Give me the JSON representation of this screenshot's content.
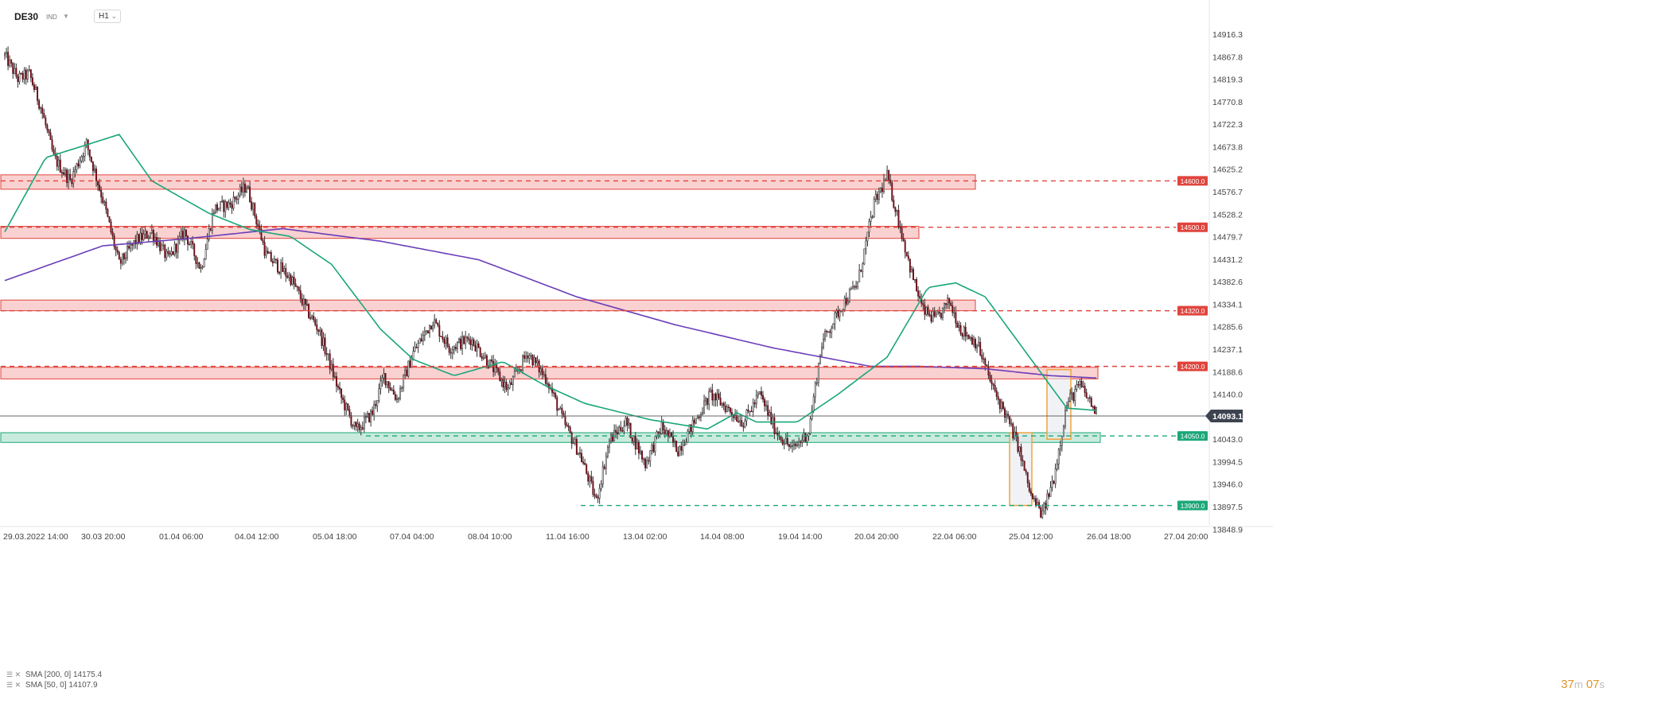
{
  "header": {
    "symbol": "DE30",
    "unit": "IND",
    "timeframe": "H1"
  },
  "legend": [
    {
      "label": "SMA [200, 0] 14175.4",
      "color": "#6a3db8"
    },
    {
      "label": "SMA [50, 0] 14107.9",
      "color": "#19a67a"
    }
  ],
  "countdown": {
    "minutes": "37",
    "m": "m",
    "seconds": "07",
    "s": "s"
  },
  "colors": {
    "up": "#ffffff",
    "down": "#6b0f1a",
    "wick": "#333333",
    "resistance_fill": "#f9c9c9",
    "resistance_stroke": "#e0443d",
    "support_fill": "#bfe8d8",
    "support_stroke": "#1ba779",
    "sma200": "#6a3db8",
    "sma50": "#19a67a",
    "price_line": "#666666",
    "highlight_box": "#f0a43a"
  },
  "chart_data": {
    "type": "candlestick",
    "ylim": [
      13840,
      14955
    ],
    "y_ticks": [
      14916.3,
      14867.8,
      14819.3,
      14770.8,
      14722.3,
      14673.8,
      14625.2,
      14576.7,
      14528.2,
      14479.7,
      14431.2,
      14382.6,
      14334.1,
      14285.6,
      14237.1,
      14188.6,
      14140.0,
      14091.5,
      14043.0,
      13994.5,
      13946.0,
      13897.5,
      13848.9
    ],
    "x_ticks": [
      "29.03.2022   14:00",
      "30.03 20:00",
      "01.04 06:00",
      "04.04 12:00",
      "05.04 18:00",
      "07.04 04:00",
      "08.04 10:00",
      "11.04 16:00",
      "13.04 02:00",
      "14.04 08:00",
      "19.04 14:00",
      "20.04 20:00",
      "22.04 06:00",
      "25.04 12:00",
      "26.04 18:00",
      "27.04 20:00"
    ],
    "current_price": 14093.1,
    "levels": [
      {
        "label": "14600.0",
        "value": 14600.0,
        "kind": "resistance"
      },
      {
        "label": "14500.0",
        "value": 14500.0,
        "kind": "resistance"
      },
      {
        "label": "14320.0",
        "value": 14320.0,
        "kind": "resistance"
      },
      {
        "label": "14200.0",
        "value": 14200.0,
        "kind": "resistance"
      },
      {
        "label": "14050.0",
        "value": 14050.0,
        "kind": "support"
      },
      {
        "label": "13900.0",
        "value": 13900.0,
        "kind": "support"
      }
    ],
    "zones": [
      {
        "low": 14582,
        "high": 14613,
        "kind": "resistance"
      },
      {
        "low": 14476,
        "high": 14502,
        "kind": "resistance"
      },
      {
        "low": 14320,
        "high": 14343,
        "kind": "resistance"
      },
      {
        "low": 14173,
        "high": 14198,
        "kind": "resistance"
      },
      {
        "low": 14036,
        "high": 14057,
        "kind": "support"
      }
    ],
    "candle_waypoints": [
      [
        0,
        14870
      ],
      [
        8,
        14820
      ],
      [
        15,
        14830
      ],
      [
        22,
        14760
      ],
      [
        30,
        14650
      ],
      [
        40,
        14600
      ],
      [
        50,
        14680
      ],
      [
        60,
        14560
      ],
      [
        70,
        14420
      ],
      [
        80,
        14470
      ],
      [
        90,
        14490
      ],
      [
        100,
        14430
      ],
      [
        110,
        14490
      ],
      [
        120,
        14410
      ],
      [
        128,
        14540
      ],
      [
        138,
        14550
      ],
      [
        148,
        14590
      ],
      [
        160,
        14440
      ],
      [
        175,
        14390
      ],
      [
        185,
        14320
      ],
      [
        192,
        14280
      ],
      [
        205,
        14140
      ],
      [
        215,
        14060
      ],
      [
        225,
        14100
      ],
      [
        232,
        14180
      ],
      [
        240,
        14130
      ],
      [
        250,
        14230
      ],
      [
        262,
        14300
      ],
      [
        272,
        14240
      ],
      [
        285,
        14260
      ],
      [
        298,
        14200
      ],
      [
        308,
        14150
      ],
      [
        320,
        14230
      ],
      [
        332,
        14170
      ],
      [
        342,
        14080
      ],
      [
        352,
        14010
      ],
      [
        362,
        13910
      ],
      [
        370,
        14040
      ],
      [
        380,
        14080
      ],
      [
        392,
        13990
      ],
      [
        402,
        14070
      ],
      [
        412,
        14020
      ],
      [
        422,
        14080
      ],
      [
        432,
        14140
      ],
      [
        442,
        14110
      ],
      [
        452,
        14080
      ],
      [
        462,
        14140
      ],
      [
        472,
        14060
      ],
      [
        482,
        14020
      ],
      [
        492,
        14060
      ],
      [
        500,
        14250
      ],
      [
        512,
        14330
      ],
      [
        522,
        14380
      ],
      [
        532,
        14550
      ],
      [
        540,
        14610
      ],
      [
        548,
        14500
      ],
      [
        555,
        14400
      ],
      [
        562,
        14320
      ],
      [
        570,
        14300
      ],
      [
        578,
        14340
      ],
      [
        585,
        14280
      ],
      [
        595,
        14250
      ],
      [
        605,
        14150
      ],
      [
        612,
        14100
      ],
      [
        620,
        14030
      ],
      [
        628,
        13920
      ],
      [
        635,
        13880
      ],
      [
        642,
        13960
      ],
      [
        650,
        14120
      ],
      [
        658,
        14160
      ],
      [
        668,
        14100
      ]
    ],
    "sma200_waypoints": [
      [
        0,
        14385
      ],
      [
        60,
        14460
      ],
      [
        110,
        14475
      ],
      [
        170,
        14497
      ],
      [
        230,
        14470
      ],
      [
        290,
        14430
      ],
      [
        350,
        14350
      ],
      [
        410,
        14290
      ],
      [
        470,
        14240
      ],
      [
        530,
        14200
      ],
      [
        560,
        14200
      ],
      [
        600,
        14195
      ],
      [
        640,
        14180
      ],
      [
        668,
        14175
      ]
    ],
    "sma50_waypoints": [
      [
        0,
        14490
      ],
      [
        25,
        14650
      ],
      [
        70,
        14700
      ],
      [
        90,
        14600
      ],
      [
        125,
        14530
      ],
      [
        150,
        14495
      ],
      [
        175,
        14480
      ],
      [
        200,
        14420
      ],
      [
        230,
        14280
      ],
      [
        250,
        14215
      ],
      [
        275,
        14180
      ],
      [
        305,
        14210
      ],
      [
        330,
        14160
      ],
      [
        355,
        14120
      ],
      [
        395,
        14085
      ],
      [
        430,
        14065
      ],
      [
        448,
        14100
      ],
      [
        460,
        14080
      ],
      [
        485,
        14080
      ],
      [
        510,
        14140
      ],
      [
        540,
        14220
      ],
      [
        565,
        14370
      ],
      [
        582,
        14380
      ],
      [
        600,
        14350
      ],
      [
        625,
        14230
      ],
      [
        650,
        14110
      ],
      [
        668,
        14105
      ]
    ]
  }
}
